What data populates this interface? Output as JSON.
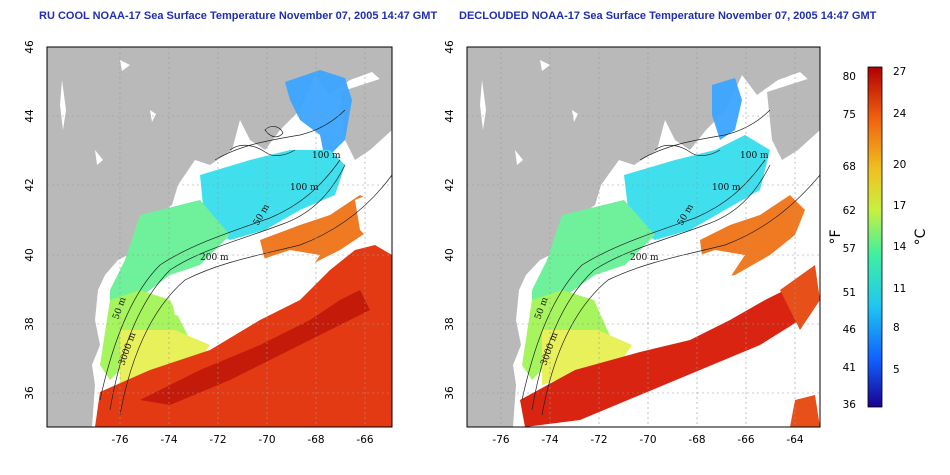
{
  "maps": [
    {
      "title": "RU COOL NOAA-17 Sea Surface Temperature November 07, 2005 14:47 GMT",
      "contour_labels": [
        "100 m",
        "100 m",
        "50 m",
        "200 m",
        "50 m",
        "3000 m"
      ]
    },
    {
      "title": "DECLOUDED NOAA-17 Sea Surface Temperature November 07, 2005 14:47 GMT",
      "contour_labels": [
        "100 m",
        "100 m",
        "50 m",
        "200 m",
        "50 m",
        "3000 m"
      ]
    }
  ],
  "axes": {
    "lon_ticks": [
      "-76",
      "-74",
      "-72",
      "-70",
      "-68",
      "-66",
      "-64"
    ],
    "lat_ticks": [
      "36",
      "38",
      "40",
      "42",
      "44",
      "46"
    ],
    "lon_range": [
      -77.2,
      -62.8
    ],
    "lat_range": [
      35,
      46
    ]
  },
  "colorbar": {
    "fahrenheit_label": "°F",
    "celsius_label": "°C",
    "fahrenheit_ticks": [
      "36",
      "41",
      "46",
      "51",
      "57",
      "62",
      "68",
      "75",
      "80"
    ],
    "celsius_ticks": [
      "5",
      "8",
      "11",
      "14",
      "17",
      "20",
      "24",
      "27"
    ],
    "colors": [
      "#1a0090",
      "#1060ff",
      "#20c8f0",
      "#40f0a0",
      "#c8f040",
      "#f0c020",
      "#f06010",
      "#b00000"
    ]
  },
  "colors": {
    "land": "#b9b9b9",
    "no_data": "#ffffff",
    "title": "#1f2fb3"
  }
}
